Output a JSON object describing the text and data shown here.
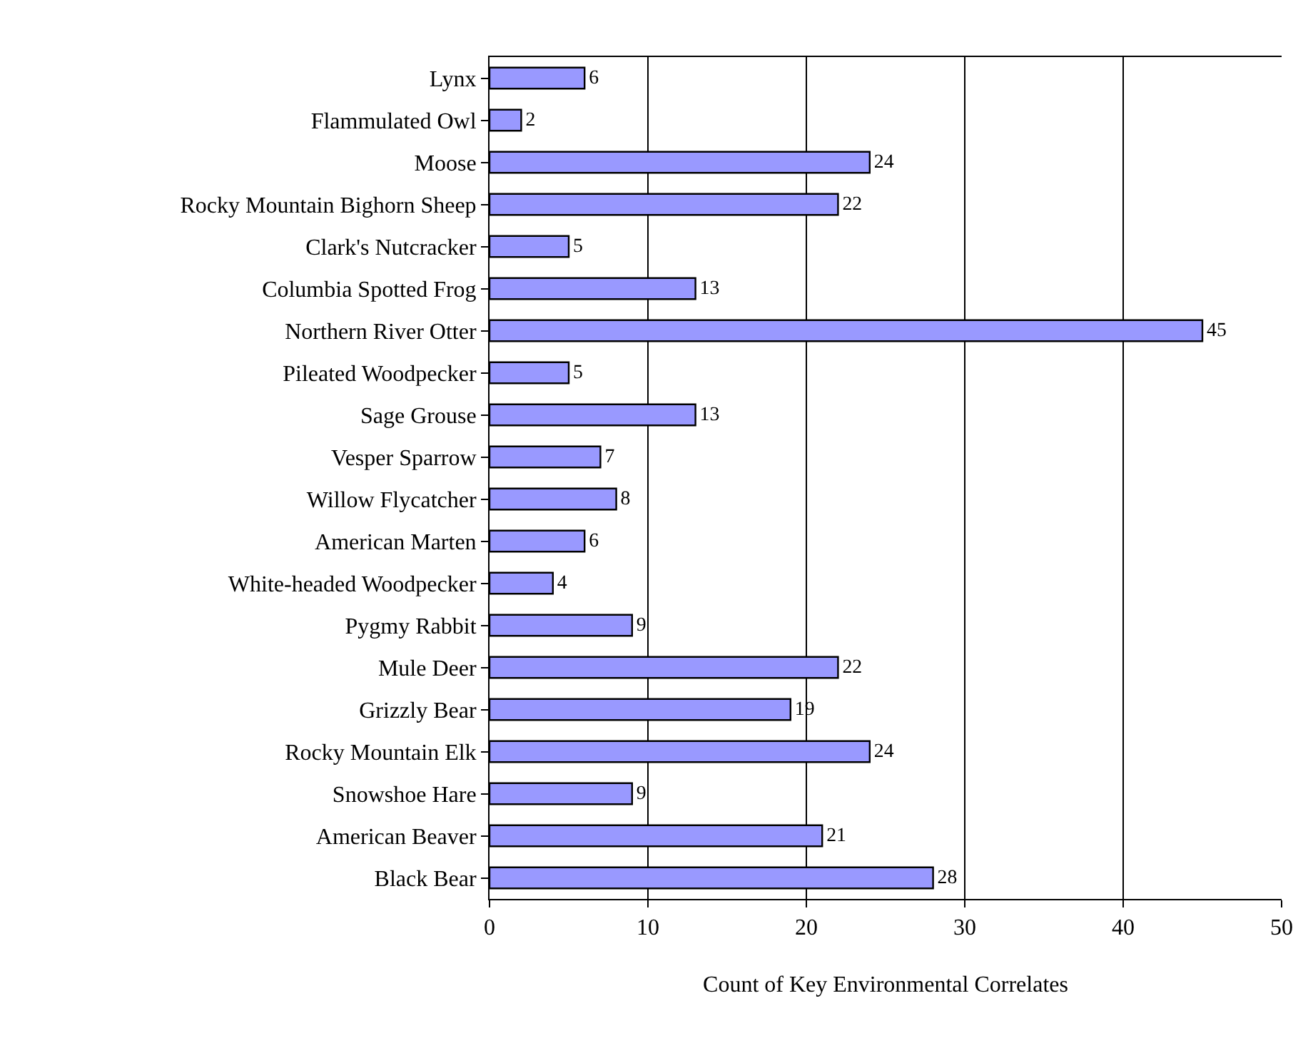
{
  "chart_data": {
    "type": "bar",
    "orientation": "horizontal",
    "xlabel": "Count of Key Environmental Correlates",
    "categories": [
      "Lynx",
      "Flammulated Owl",
      "Moose",
      "Rocky Mountain Bighorn Sheep",
      "Clark's Nutcracker",
      "Columbia Spotted Frog",
      "Northern River Otter",
      "Pileated Woodpecker",
      "Sage Grouse",
      "Vesper Sparrow",
      "Willow Flycatcher",
      "American Marten",
      "White-headed Woodpecker",
      "Pygmy Rabbit",
      "Mule Deer",
      "Grizzly Bear",
      "Rocky Mountain Elk",
      "Snowshoe Hare",
      "American Beaver",
      "Black Bear"
    ],
    "values": [
      6,
      2,
      24,
      22,
      5,
      13,
      45,
      5,
      13,
      7,
      8,
      6,
      4,
      9,
      22,
      19,
      24,
      9,
      21,
      28
    ],
    "color": "#9999ff",
    "xlim": [
      0,
      50
    ],
    "xticks": [
      0,
      10,
      20,
      30,
      40,
      50
    ],
    "grid": "x",
    "data_labels": true
  }
}
